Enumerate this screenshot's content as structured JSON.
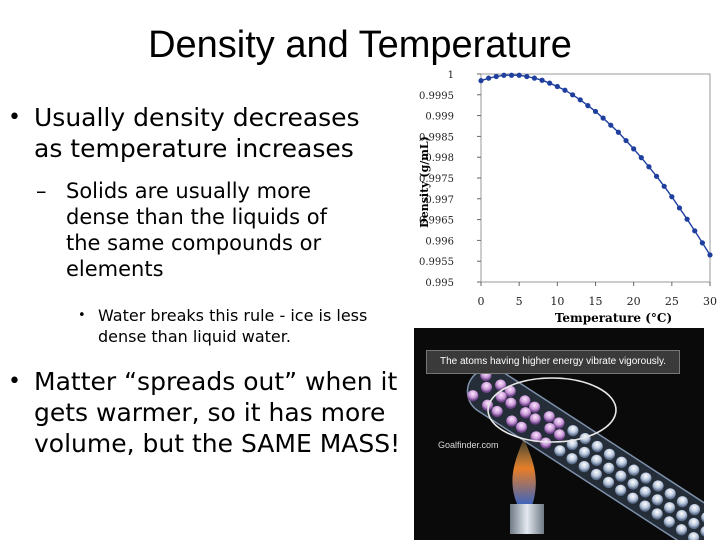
{
  "slide": {
    "title": "Density and Temperature",
    "bullets": [
      {
        "text": "Usually density decreases as temperature increases",
        "marker": "•"
      },
      {
        "text": "Solids are usually more dense than the liquids of the same compounds or elements",
        "marker": "–"
      },
      {
        "text": "Water breaks this rule - ice is less dense than liquid water.",
        "marker": "•"
      },
      {
        "text": "Matter “spreads out” when it gets warmer, so it has more volume, but the SAME MASS!",
        "marker": "•"
      }
    ]
  },
  "chart_data": {
    "type": "line",
    "title": "",
    "xlabel": "Temperature (°C)",
    "ylabel": "Density (g/mL)",
    "xlim": [
      0,
      30
    ],
    "ylim": [
      0.995,
      1
    ],
    "x_ticks": [
      0,
      5,
      10,
      15,
      20,
      25,
      30
    ],
    "y_ticks": [
      0.995,
      0.9955,
      0.996,
      0.9965,
      0.997,
      0.9975,
      0.998,
      0.9985,
      0.999,
      0.9995,
      1
    ],
    "y_tick_labels": [
      "0.995",
      "0.9955",
      "0.996",
      "0.9965",
      "0.997",
      "0.9975",
      "0.998",
      "0.9985",
      "0.999",
      "0.9995",
      "1"
    ],
    "series": [
      {
        "name": "",
        "color": "#1f3f9f",
        "points": [
          [
            0,
            0.99984
          ],
          [
            1,
            0.9999
          ],
          [
            2,
            0.99994
          ],
          [
            3,
            0.99997
          ],
          [
            4,
            0.99997
          ],
          [
            5,
            0.99997
          ],
          [
            6,
            0.99994
          ],
          [
            7,
            0.9999
          ],
          [
            8,
            0.99985
          ],
          [
            9,
            0.99978
          ],
          [
            10,
            0.9997
          ],
          [
            11,
            0.99961
          ],
          [
            12,
            0.9995
          ],
          [
            13,
            0.99938
          ],
          [
            14,
            0.99924
          ],
          [
            15,
            0.9991
          ],
          [
            16,
            0.99894
          ],
          [
            17,
            0.99877
          ],
          [
            18,
            0.9986
          ],
          [
            19,
            0.9984
          ],
          [
            20,
            0.9982
          ],
          [
            21,
            0.99799
          ],
          [
            22,
            0.99777
          ],
          [
            23,
            0.99754
          ],
          [
            24,
            0.9973
          ],
          [
            25,
            0.99705
          ],
          [
            26,
            0.99678
          ],
          [
            27,
            0.99651
          ],
          [
            28,
            0.99623
          ],
          [
            29,
            0.99594
          ],
          [
            30,
            0.99565
          ]
        ]
      }
    ],
    "grid": false,
    "legend": "none"
  },
  "photo": {
    "caption": "The atoms having higher energy vibrate vigorously.",
    "watermark": "Goalfinder.com"
  }
}
